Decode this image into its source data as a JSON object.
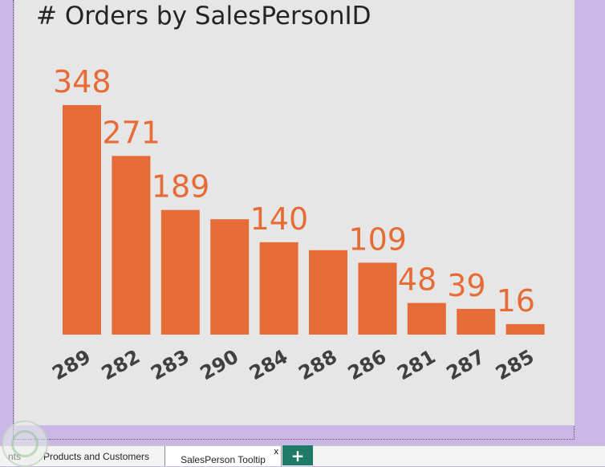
{
  "report": {
    "pages": [
      {
        "label": "nts"
      },
      {
        "label": "Products and Customers"
      },
      {
        "label": "SalesPerson Tooltip"
      }
    ],
    "close_glyph": "x",
    "add_page_glyph": "+"
  },
  "colors": {
    "canvas_background": "#c9b8e6",
    "visual_background": "#e6e6e6",
    "bar": "#e66c37",
    "label": "#e66c37",
    "add_button": "#1f7a68"
  },
  "chart_data": {
    "type": "bar",
    "title": "# Orders by SalesPersonID",
    "categories": [
      "289",
      "282",
      "283",
      "290",
      "284",
      "288",
      "286",
      "281",
      "287",
      "285"
    ],
    "values": [
      348,
      271,
      189,
      175,
      140,
      128,
      109,
      48,
      39,
      16
    ],
    "data_labels": [
      "348",
      "271",
      "189",
      "",
      "140",
      "",
      "109",
      "48",
      "39",
      "16"
    ],
    "xlabel": "",
    "ylabel": "",
    "ylim": [
      0,
      348
    ],
    "grid": false,
    "legend": "none"
  }
}
